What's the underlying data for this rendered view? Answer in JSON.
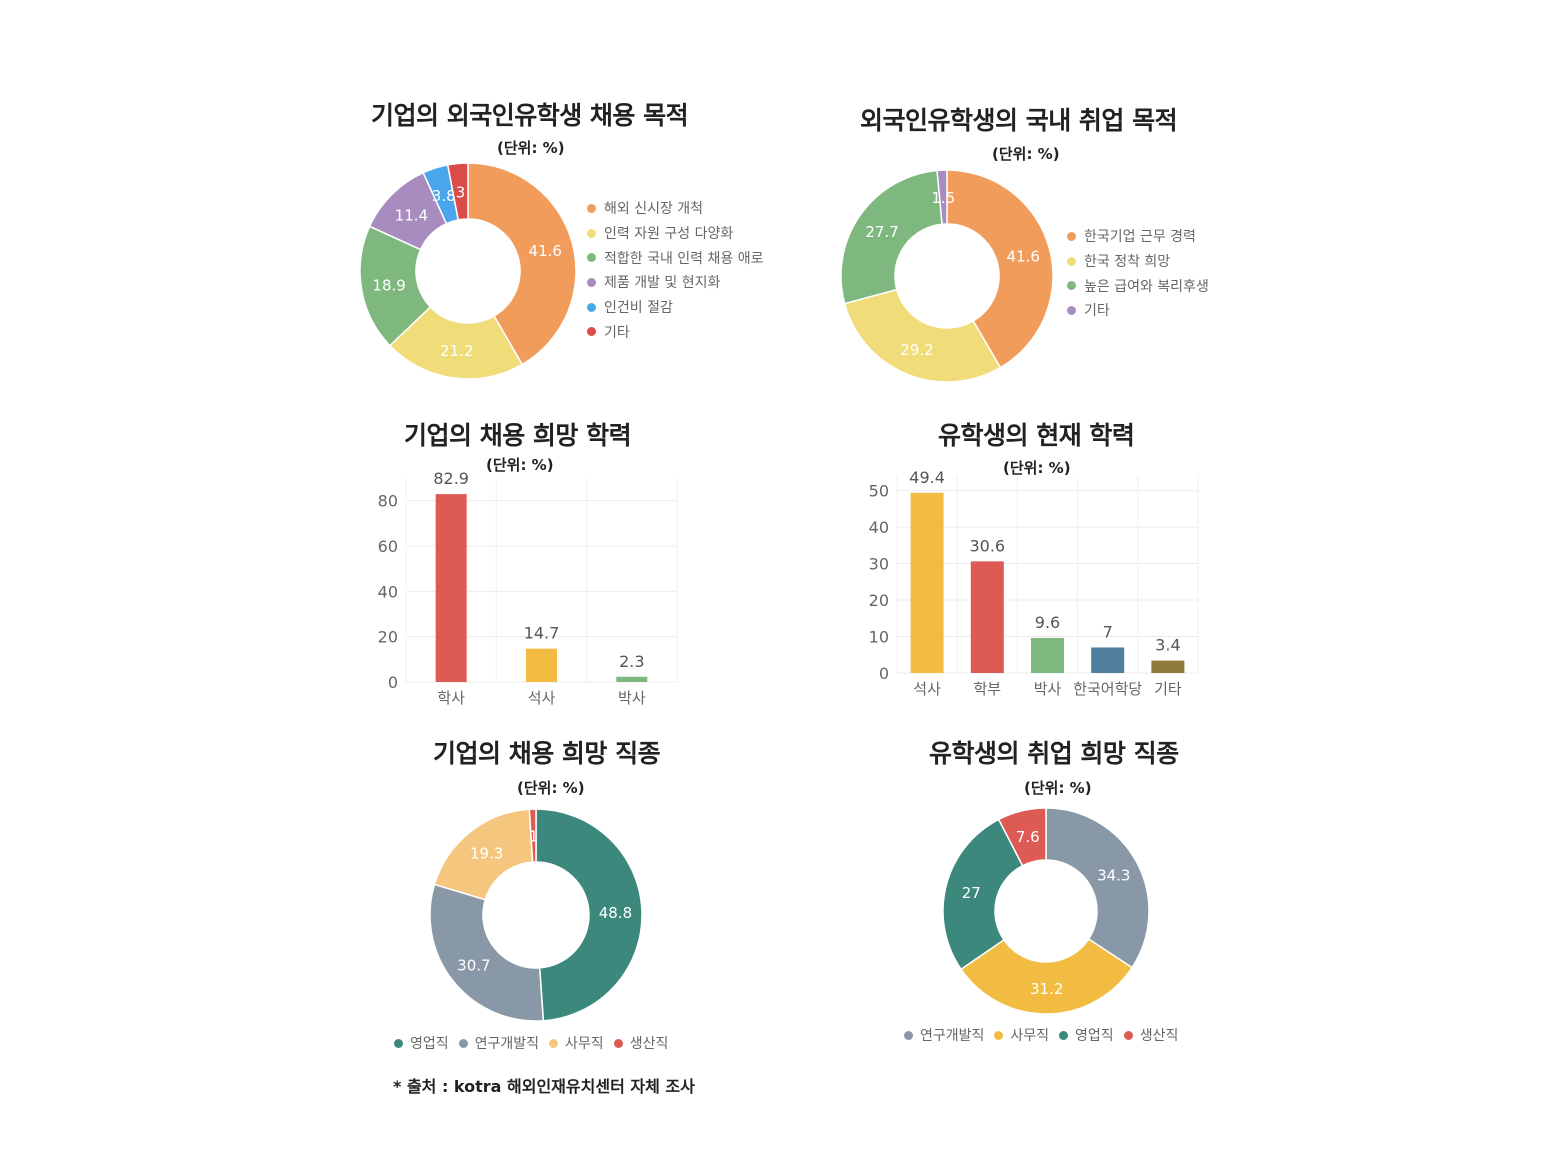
{
  "chart_data": [
    {
      "id": "c1",
      "type": "pie",
      "title": "기업의 외국인유학생 채용 목적",
      "unit": "(단위: %)",
      "labels": [
        "해외 신시장 개척",
        "인력 자원 구성 다양화",
        "적합한 국내 인력 채용 애로",
        "제품 개발 및 현지화",
        "인건비 절감",
        "기타"
      ],
      "values": [
        41.6,
        21.2,
        18.9,
        11.4,
        3.8,
        3
      ],
      "colors": [
        "#f29c5c",
        "#f0dc78",
        "#7fb87f",
        "#a98cbf",
        "#4aa6ea",
        "#dd4a4a"
      ],
      "legend": "right"
    },
    {
      "id": "c2",
      "type": "pie",
      "title": "외국인유학생의 국내 취업 목적",
      "unit": "(단위: %)",
      "labels": [
        "한국기업 근무 경력",
        "한국 정착 희망",
        "높은 급여와 복리후생",
        "기타"
      ],
      "values": [
        41.6,
        29.2,
        27.7,
        1.5
      ],
      "colors": [
        "#f29c5c",
        "#f0dc78",
        "#7fb87f",
        "#a98cbf"
      ],
      "legend": "right"
    },
    {
      "id": "c3",
      "type": "bar",
      "title": "기업의 채용 희망 학력",
      "unit": "(단위: %)",
      "categories": [
        "학사",
        "석사",
        "박사"
      ],
      "values": [
        82.9,
        14.7,
        2.3
      ],
      "colors": [
        "#dd5a55",
        "#f2bb42",
        "#7fb87f"
      ],
      "ylim": [
        0,
        90
      ],
      "yticks": [
        0,
        20,
        40,
        60,
        80
      ],
      "grid": true
    },
    {
      "id": "c4",
      "type": "bar",
      "title": "유학생의 현재 학력",
      "unit": "(단위: %)",
      "categories": [
        "석사",
        "학부",
        "박사",
        "한국어학당",
        "기타"
      ],
      "values": [
        49.4,
        30.6,
        9.6,
        7,
        3.4
      ],
      "colors": [
        "#f2bb42",
        "#dd5a55",
        "#7fb87f",
        "#507f9e",
        "#8f7a3c"
      ],
      "ylim": [
        0,
        54
      ],
      "yticks": [
        0,
        10,
        20,
        30,
        40,
        50
      ],
      "grid": true
    },
    {
      "id": "c5",
      "type": "pie",
      "title": "기업의 채용 희망 직종",
      "unit": "(단위: %)",
      "labels": [
        "영업직",
        "연구개발직",
        "사무직",
        "생산직"
      ],
      "values": [
        48.8,
        30.7,
        19.3,
        1
      ],
      "colors": [
        "#3d887d",
        "#8998a6",
        "#f5c77e",
        "#dd5a55"
      ],
      "legend": "bottom"
    },
    {
      "id": "c6",
      "type": "pie",
      "title": "유학생의 취업 희망 직종",
      "unit": "(단위: %)",
      "labels": [
        "연구개발직",
        "사무직",
        "영업직",
        "생산직"
      ],
      "values": [
        34.3,
        31.2,
        27,
        7.6
      ],
      "colors": [
        "#8998a6",
        "#f2bb42",
        "#3d887d",
        "#dd5a55"
      ],
      "legend": "bottom"
    }
  ],
  "source": "* 출처 : kotra 해외인재유치센터 자체 조사"
}
